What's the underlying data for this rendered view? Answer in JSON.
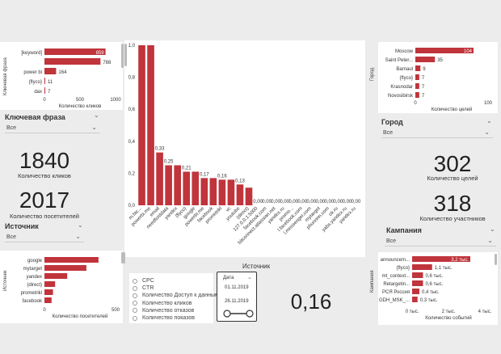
{
  "keyword_chart": {
    "y_title": "Ключевая фраза",
    "x_title": "Количество кликов",
    "ticks": [
      "0",
      "500",
      "1000"
    ],
    "categories": [
      "[keyword]",
      "",
      "power bi",
      "{flyco}",
      "dax"
    ],
    "values": [
      859,
      788,
      164,
      11,
      7
    ],
    "value_labels": [
      "859",
      "788",
      "164",
      "11",
      "7"
    ],
    "xlim": [
      0,
      1000
    ]
  },
  "keyword_slicer": {
    "title": "Ключевая фраза",
    "value": "Все"
  },
  "kpi_clicks": {
    "value": "1840",
    "label": "Количество кликов"
  },
  "kpi_visitors": {
    "value": "2017",
    "label": "Количество посетителей"
  },
  "source_slicer": {
    "title": "Источник",
    "value": "Все"
  },
  "source_chart": {
    "y_title": "Источник",
    "x_title": "Количество посетителей",
    "ticks": [
      "0",
      "500"
    ],
    "categories": [
      "google",
      "mytarget",
      "yandex",
      "(direct)",
      "prometrikl",
      "facebook"
    ],
    "values": [
      760,
      590,
      320,
      150,
      120,
      100
    ],
    "xlim": [
      0,
      1000
    ]
  },
  "main_chart": {
    "type": "bar",
    "y_ticks": [
      "0,0",
      "0,2",
      "0,4",
      "0,6",
      "0,8",
      "1,0"
    ],
    "ylim": [
      0,
      1
    ],
    "categories": [
      "m.fac...",
      "powerbi.me",
      "email",
      "needforddata",
      "yandex",
      "(flyco)",
      "google",
      "powerbi.me",
      "facebook",
      "prometrikl",
      "vc",
      "youtube",
      "(direct)",
      "127.0.0.1:5000",
      "facebook.com",
      "bitconnect.atlassian.net",
      "yandex.ru",
      "promo...",
      "l.facebook.com",
      "l.messenger.com",
      "mytarget",
      "phunnnn.com",
      "ok.ru",
      "yabs.yandex.ru",
      "yandex.ru"
    ],
    "values": [
      1.0,
      1.0,
      0.33,
      0.25,
      0.25,
      0.21,
      0.21,
      0.17,
      0.17,
      0.16,
      0.16,
      0.13,
      0.11,
      0,
      0,
      0,
      0,
      0,
      0,
      0,
      0,
      0,
      0,
      0,
      0
    ],
    "value_labels": [
      "",
      "",
      "0,33",
      "0,25",
      "",
      "0,21",
      "",
      "0,17",
      "",
      "0,16",
      "",
      "0,13",
      "",
      "0,00",
      "0,00",
      "0,00",
      "0,00",
      "0,00",
      "0,00",
      "0,00",
      "0,00",
      "0,00",
      "0,00",
      "0,00",
      "0,00"
    ]
  },
  "measure_list": {
    "items": [
      "CPC",
      "CTR",
      "Количество Доступ к данным",
      "Количество кликов",
      "Количество отказов",
      "Количество показов"
    ]
  },
  "date_slicer": {
    "title": "Источник",
    "header": "Дата",
    "from": "01.11.2019",
    "to": "26.11.2019"
  },
  "big_value": {
    "value": "0,16"
  },
  "city_chart": {
    "y_title": "Город",
    "x_title": "Количество целей",
    "ticks": [
      "0",
      "100"
    ],
    "categories": [
      "Moscow",
      "Saint Peter...",
      "Barnaul",
      "{flyco}",
      "Krasnodar",
      "Novosibirsk"
    ],
    "values": [
      104,
      35,
      9,
      7,
      7,
      7
    ],
    "value_labels": [
      "104",
      "35",
      "9",
      "7",
      "7",
      "7"
    ],
    "xlim": [
      0,
      130
    ]
  },
  "city_slicer": {
    "title": "Город",
    "value": "Все"
  },
  "kpi_goals": {
    "value": "302",
    "label": "Количество целей"
  },
  "kpi_participants": {
    "value": "318",
    "label": "Количество участников"
  },
  "campaign_slicer": {
    "title": "Кампания",
    "value": "Все"
  },
  "campaign_chart": {
    "y_title": "Кампания",
    "x_title": "Количество событий",
    "ticks": [
      "0 тыс.",
      "2 тыс.",
      "4 тыс."
    ],
    "categories": [
      "announcem...",
      "{flyco}",
      "mt_context...",
      "Retargetin...",
      "PCЯ Россия",
      "GDH_MSK_..."
    ],
    "values": [
      3200,
      1100,
      600,
      600,
      400,
      300
    ],
    "value_labels": [
      "3,2 тыс.",
      "1,1 тыс.",
      "0,6 тыс.",
      "0,6 тыс.",
      "0,4 тыс.",
      "0,3 тыс."
    ],
    "xlim": [
      0,
      4000
    ]
  },
  "colors": {
    "bar": "#c0343b",
    "background": "#ececec"
  }
}
